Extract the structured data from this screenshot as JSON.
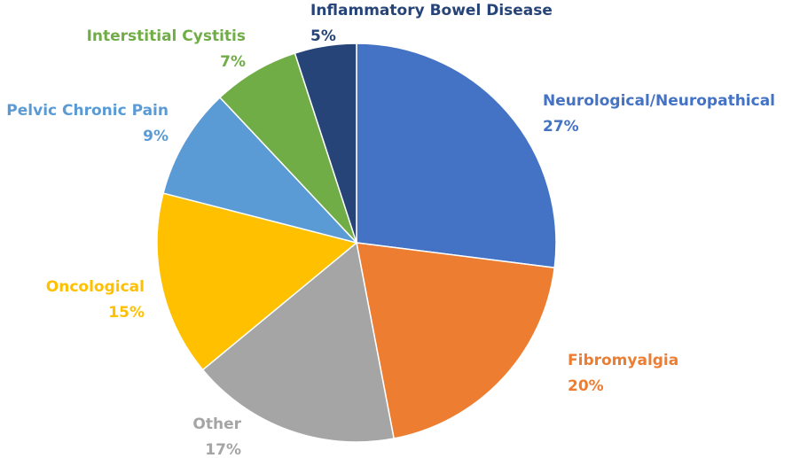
{
  "chart_data": {
    "type": "pie",
    "title": "",
    "legend": "none",
    "slices": [
      {
        "label": "Neurological/Neuropathical",
        "value": 27,
        "display": "27%",
        "color": "#4472C4"
      },
      {
        "label": "Fibromyalgia",
        "value": 20,
        "display": "20%",
        "color": "#ED7D31"
      },
      {
        "label": "Other",
        "value": 17,
        "display": "17%",
        "color": "#A5A5A5"
      },
      {
        "label": "Oncological",
        "value": 15,
        "display": "15%",
        "color": "#FFC000"
      },
      {
        "label": "Pelvic Chronic Pain",
        "value": 9,
        "display": "9%",
        "color": "#5B9BD5"
      },
      {
        "label": "Interstitial Cystitis",
        "value": 7,
        "display": "7%",
        "color": "#70AD47"
      },
      {
        "label": "Inflammatory Bowel Disease",
        "value": 5,
        "display": "5%",
        "color": "#264478"
      }
    ]
  }
}
